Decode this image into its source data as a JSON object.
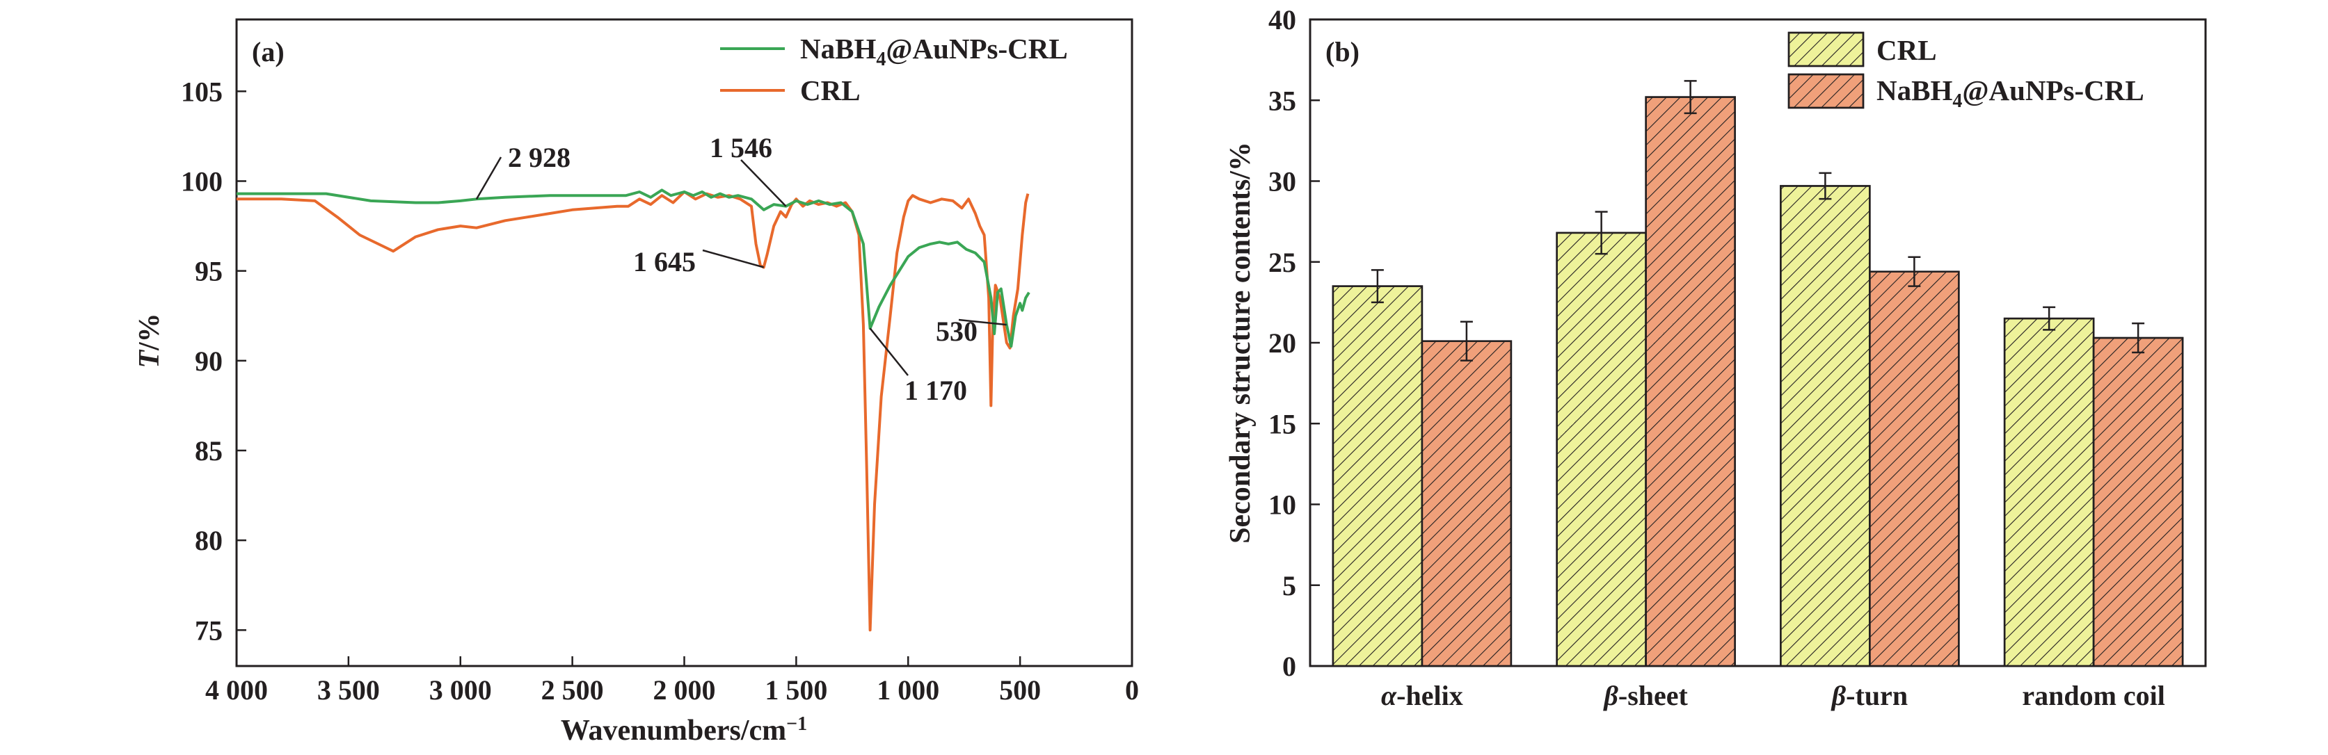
{
  "colors": {
    "green": "#3aa655",
    "orange": "#e8692c",
    "bar_green": "#eef29a",
    "bar_orange": "#f0a07a",
    "axis": "#231f20"
  },
  "chart_data": [
    {
      "type": "line",
      "panel_label": "(a)",
      "xlabel": "Wavenumbers/cm⁻¹",
      "ylabel": "T/%",
      "xlim": [
        4000,
        0
      ],
      "ylim": [
        73,
        109
      ],
      "x_ticks": [
        4000,
        3500,
        3000,
        2500,
        2000,
        1500,
        1000,
        500,
        0
      ],
      "x_tick_labels": [
        "4 000",
        "3 500",
        "3 000",
        "2 500",
        "2 000",
        "1 500",
        "1 000",
        "500",
        "0"
      ],
      "y_ticks": [
        75,
        80,
        85,
        90,
        95,
        100,
        105
      ],
      "y_tick_labels": [
        "75",
        "80",
        "85",
        "90",
        "95",
        "100",
        "105"
      ],
      "legend_position": "top-right",
      "series": [
        {
          "name": "NaBH4@AuNPs-CRL",
          "color_key": "green",
          "points": [
            [
              4000,
              99.3
            ],
            [
              3800,
              99.3
            ],
            [
              3600,
              99.3
            ],
            [
              3400,
              98.9
            ],
            [
              3200,
              98.8
            ],
            [
              3100,
              98.8
            ],
            [
              3000,
              98.9
            ],
            [
              2928,
              99.0
            ],
            [
              2800,
              99.1
            ],
            [
              2600,
              99.2
            ],
            [
              2400,
              99.2
            ],
            [
              2260,
              99.2
            ],
            [
              2200,
              99.4
            ],
            [
              2150,
              99.1
            ],
            [
              2100,
              99.5
            ],
            [
              2060,
              99.2
            ],
            [
              2000,
              99.4
            ],
            [
              1960,
              99.2
            ],
            [
              1920,
              99.4
            ],
            [
              1880,
              99.1
            ],
            [
              1840,
              99.3
            ],
            [
              1800,
              99.1
            ],
            [
              1760,
              99.2
            ],
            [
              1700,
              99.0
            ],
            [
              1645,
              98.4
            ],
            [
              1600,
              98.7
            ],
            [
              1546,
              98.6
            ],
            [
              1500,
              98.9
            ],
            [
              1450,
              98.7
            ],
            [
              1400,
              98.9
            ],
            [
              1350,
              98.7
            ],
            [
              1300,
              98.8
            ],
            [
              1250,
              98.3
            ],
            [
              1200,
              96.5
            ],
            [
              1170,
              91.8
            ],
            [
              1130,
              93.0
            ],
            [
              1080,
              94.2
            ],
            [
              1040,
              95.0
            ],
            [
              1000,
              95.8
            ],
            [
              950,
              96.3
            ],
            [
              900,
              96.5
            ],
            [
              860,
              96.6
            ],
            [
              820,
              96.5
            ],
            [
              780,
              96.6
            ],
            [
              740,
              96.2
            ],
            [
              700,
              96.0
            ],
            [
              660,
              95.5
            ],
            [
              630,
              93.5
            ],
            [
              615,
              91.5
            ],
            [
              600,
              93.8
            ],
            [
              585,
              94.0
            ],
            [
              560,
              92.0
            ],
            [
              540,
              90.8
            ],
            [
              520,
              92.5
            ],
            [
              500,
              93.2
            ],
            [
              490,
              92.8
            ],
            [
              475,
              93.5
            ],
            [
              460,
              93.8
            ]
          ]
        },
        {
          "name": "CRL",
          "color_key": "orange",
          "points": [
            [
              4000,
              99.0
            ],
            [
              3800,
              99.0
            ],
            [
              3650,
              98.9
            ],
            [
              3550,
              98.0
            ],
            [
              3450,
              97.0
            ],
            [
              3350,
              96.4
            ],
            [
              3300,
              96.1
            ],
            [
              3250,
              96.5
            ],
            [
              3200,
              96.9
            ],
            [
              3100,
              97.3
            ],
            [
              3000,
              97.5
            ],
            [
              2928,
              97.4
            ],
            [
              2800,
              97.8
            ],
            [
              2700,
              98.0
            ],
            [
              2600,
              98.2
            ],
            [
              2500,
              98.4
            ],
            [
              2400,
              98.5
            ],
            [
              2300,
              98.6
            ],
            [
              2250,
              98.6
            ],
            [
              2200,
              99.0
            ],
            [
              2150,
              98.7
            ],
            [
              2100,
              99.2
            ],
            [
              2050,
              98.8
            ],
            [
              2000,
              99.4
            ],
            [
              1950,
              99.0
            ],
            [
              1900,
              99.3
            ],
            [
              1850,
              99.1
            ],
            [
              1800,
              99.2
            ],
            [
              1750,
              99.0
            ],
            [
              1700,
              98.6
            ],
            [
              1680,
              96.5
            ],
            [
              1660,
              95.3
            ],
            [
              1645,
              95.2
            ],
            [
              1630,
              95.9
            ],
            [
              1600,
              97.5
            ],
            [
              1570,
              98.3
            ],
            [
              1546,
              98.0
            ],
            [
              1520,
              98.7
            ],
            [
              1500,
              99.0
            ],
            [
              1470,
              98.6
            ],
            [
              1440,
              98.9
            ],
            [
              1400,
              98.7
            ],
            [
              1360,
              98.8
            ],
            [
              1320,
              98.6
            ],
            [
              1280,
              98.8
            ],
            [
              1250,
              98.3
            ],
            [
              1220,
              97.0
            ],
            [
              1200,
              92.0
            ],
            [
              1185,
              84.0
            ],
            [
              1170,
              75.0
            ],
            [
              1150,
              82.0
            ],
            [
              1120,
              88.0
            ],
            [
              1080,
              92.5
            ],
            [
              1050,
              96.0
            ],
            [
              1020,
              98.0
            ],
            [
              1000,
              98.9
            ],
            [
              980,
              99.2
            ],
            [
              950,
              99.0
            ],
            [
              900,
              98.8
            ],
            [
              850,
              99.0
            ],
            [
              800,
              98.9
            ],
            [
              760,
              98.5
            ],
            [
              730,
              99.0
            ],
            [
              700,
              98.2
            ],
            [
              680,
              97.5
            ],
            [
              660,
              97.0
            ],
            [
              640,
              93.5
            ],
            [
              630,
              87.5
            ],
            [
              622,
              92.0
            ],
            [
              610,
              94.2
            ],
            [
              590,
              93.5
            ],
            [
              560,
              91.0
            ],
            [
              545,
              90.7
            ],
            [
              530,
              92.5
            ],
            [
              510,
              94.0
            ],
            [
              490,
              97.0
            ],
            [
              475,
              98.8
            ],
            [
              465,
              99.3
            ]
          ]
        }
      ],
      "annotations": [
        {
          "text": "2 928",
          "x": 2928,
          "y": 99.0
        },
        {
          "text": "1 546",
          "x": 1546,
          "y": 98.6
        },
        {
          "text": "1 645",
          "x": 1645,
          "y": 95.2
        },
        {
          "text": "1 170",
          "x": 1170,
          "y": 91.8
        },
        {
          "text": "530",
          "x": 560,
          "y": 92.0
        }
      ]
    },
    {
      "type": "bar",
      "panel_label": "(b)",
      "xlabel": "",
      "ylabel": "Secondary structure contents/%",
      "ylim": [
        0,
        40
      ],
      "y_ticks": [
        0,
        5,
        10,
        15,
        20,
        25,
        30,
        35,
        40
      ],
      "categories": [
        {
          "prefix": "α",
          "suffix": "-helix"
        },
        {
          "prefix": "β",
          "suffix": "-sheet"
        },
        {
          "prefix": "β",
          "suffix": "-turn"
        },
        {
          "prefix": "",
          "suffix": "random coil"
        }
      ],
      "legend_position": "top-right",
      "series": [
        {
          "name": "CRL",
          "color_key": "bar_green",
          "values": [
            23.5,
            26.8,
            29.7,
            21.5
          ],
          "errors": [
            1.0,
            1.3,
            0.8,
            0.7
          ]
        },
        {
          "name": "NaBH4@AuNPs-CRL",
          "color_key": "bar_orange",
          "values": [
            20.1,
            35.2,
            24.4,
            20.3
          ],
          "errors": [
            1.2,
            1.0,
            0.9,
            0.9
          ]
        }
      ]
    }
  ]
}
